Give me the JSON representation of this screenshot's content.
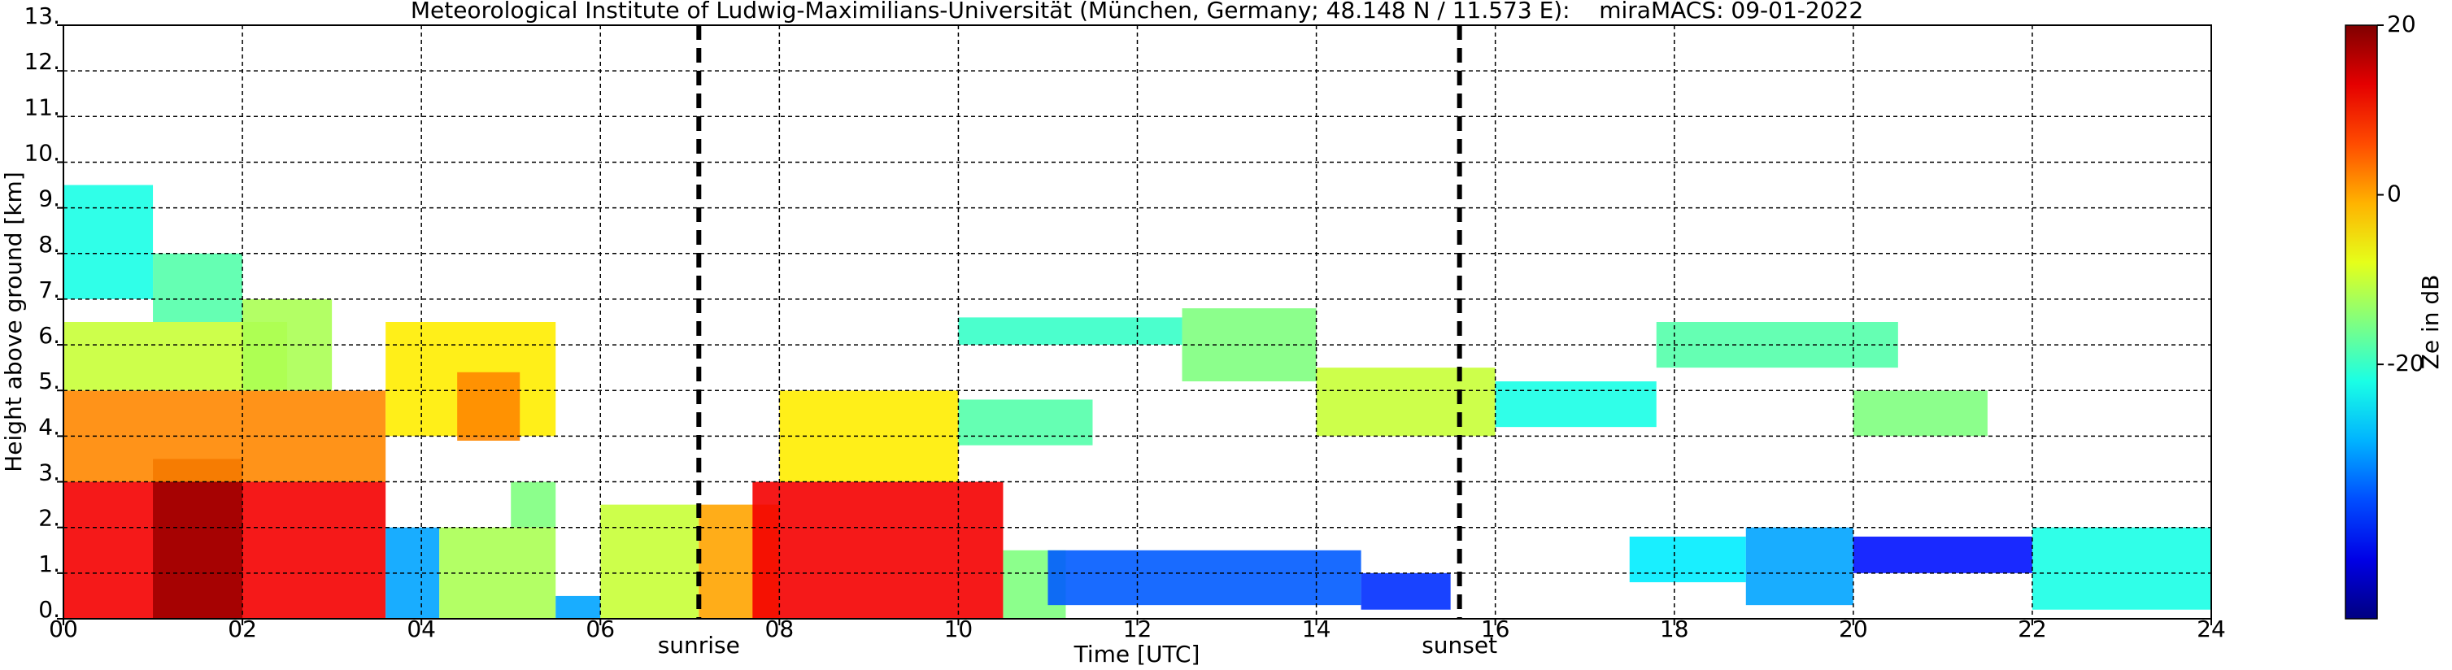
{
  "chart_data": {
    "type": "heatmap",
    "title": "Meteorological Institute of Ludwig-Maximilians-Universität (München, Germany; 48.148 N / 11.573 E):    miraMACS: 09-01-2022",
    "xlabel": "Time [UTC]",
    "ylabel": "Height above ground [km]",
    "colorbar_label": "Ze in dB",
    "colormap": "jet",
    "xlim": [
      0,
      24
    ],
    "xticks": [
      {
        "value": 0,
        "label": "00"
      },
      {
        "value": 2,
        "label": "02"
      },
      {
        "value": 4,
        "label": "04"
      },
      {
        "value": 6,
        "label": "06"
      },
      {
        "value": 8,
        "label": "08"
      },
      10,
      12,
      14,
      16,
      18,
      20,
      22,
      24
    ],
    "ylim": [
      0,
      13
    ],
    "yticks": [
      {
        "value": 0,
        "label": "0."
      },
      {
        "value": 1,
        "label": "1."
      },
      {
        "value": 2,
        "label": "2."
      },
      {
        "value": 3,
        "label": "3."
      },
      {
        "value": 4,
        "label": "4."
      },
      {
        "value": 5,
        "label": "5."
      },
      {
        "value": 6,
        "label": "6."
      },
      {
        "value": 7,
        "label": "7."
      },
      {
        "value": 8,
        "label": "8."
      },
      {
        "value": 9,
        "label": "9."
      },
      {
        "value": 10,
        "label": "10."
      },
      {
        "value": 11,
        "label": "11."
      },
      {
        "value": 12,
        "label": "12."
      },
      {
        "value": 13,
        "label": "13."
      }
    ],
    "clim": [
      -50,
      20
    ],
    "cticks": [
      20,
      0,
      -20
    ],
    "grid": true,
    "events": [
      {
        "label": "sunrise",
        "time": 7.1
      },
      {
        "label": "sunset",
        "time": 15.6
      }
    ],
    "cells": [
      {
        "t": [
          0,
          3.6
        ],
        "h": [
          0,
          3
        ],
        "ze": 12
      },
      {
        "t": [
          1.0,
          2.0
        ],
        "h": [
          0,
          3.5
        ],
        "ze": 18
      },
      {
        "t": [
          0,
          3.6
        ],
        "h": [
          3,
          5
        ],
        "ze": 2
      },
      {
        "t": [
          0,
          2.5
        ],
        "h": [
          5,
          6.5
        ],
        "ze": -10
      },
      {
        "t": [
          0,
          1
        ],
        "h": [
          7,
          9.5
        ],
        "ze": -22
      },
      {
        "t": [
          1,
          2
        ],
        "h": [
          6.5,
          8
        ],
        "ze": -18
      },
      {
        "t": [
          2,
          3
        ],
        "h": [
          5,
          7
        ],
        "ze": -12
      },
      {
        "t": [
          3.6,
          5.5
        ],
        "h": [
          4,
          6.5
        ],
        "ze": -5
      },
      {
        "t": [
          4.4,
          5.1
        ],
        "h": [
          3.9,
          5.4
        ],
        "ze": 2
      },
      {
        "t": [
          3.6,
          4.2
        ],
        "h": [
          0,
          2
        ],
        "ze": -30
      },
      {
        "t": [
          4.2,
          5.5
        ],
        "h": [
          0,
          2
        ],
        "ze": -12
      },
      {
        "t": [
          5,
          5.5
        ],
        "h": [
          2,
          3
        ],
        "ze": -15
      },
      {
        "t": [
          5.5,
          6
        ],
        "h": [
          0,
          0.5
        ],
        "ze": -30
      },
      {
        "t": [
          6,
          7.1
        ],
        "h": [
          0,
          2.5
        ],
        "ze": -10
      },
      {
        "t": [
          7.1,
          8
        ],
        "h": [
          0,
          2.5
        ],
        "ze": 0
      },
      {
        "t": [
          7.7,
          10.5
        ],
        "h": [
          0,
          3
        ],
        "ze": 12
      },
      {
        "t": [
          8,
          10
        ],
        "h": [
          3,
          5
        ],
        "ze": -5
      },
      {
        "t": [
          10,
          11.5
        ],
        "h": [
          3.8,
          4.8
        ],
        "ze": -18
      },
      {
        "t": [
          10.5,
          11.2
        ],
        "h": [
          0,
          1.5
        ],
        "ze": -15
      },
      {
        "t": [
          11,
          14.5
        ],
        "h": [
          0.3,
          1.5
        ],
        "ze": -35
      },
      {
        "t": [
          14.5,
          15.5
        ],
        "h": [
          0.2,
          1
        ],
        "ze": -38
      },
      {
        "t": [
          10,
          12.5
        ],
        "h": [
          6.0,
          6.6
        ],
        "ze": -20
      },
      {
        "t": [
          12.5,
          14
        ],
        "h": [
          5.2,
          6.8
        ],
        "ze": -15
      },
      {
        "t": [
          14,
          16
        ],
        "h": [
          4.0,
          5.5
        ],
        "ze": -10
      },
      {
        "t": [
          16,
          17.8
        ],
        "h": [
          4.2,
          5.2
        ],
        "ze": -22
      },
      {
        "t": [
          17.8,
          20.5
        ],
        "h": [
          5.5,
          6.5
        ],
        "ze": -18
      },
      {
        "t": [
          20,
          21.5
        ],
        "h": [
          4,
          5
        ],
        "ze": -15
      },
      {
        "t": [
          17.5,
          18.8
        ],
        "h": [
          0.8,
          1.8
        ],
        "ze": -25
      },
      {
        "t": [
          18.8,
          20
        ],
        "h": [
          0.3,
          2
        ],
        "ze": -30
      },
      {
        "t": [
          20,
          22
        ],
        "h": [
          1,
          1.8
        ],
        "ze": -40
      },
      {
        "t": [
          22,
          24
        ],
        "h": [
          0.2,
          2
        ],
        "ze": -22
      }
    ]
  }
}
